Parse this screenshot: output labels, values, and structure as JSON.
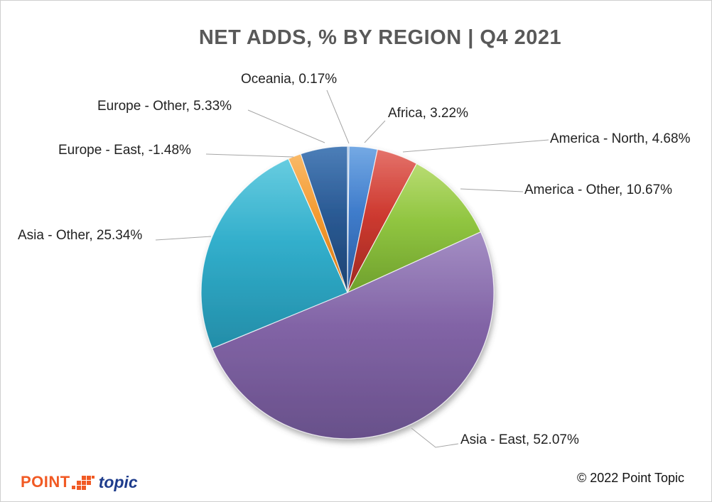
{
  "page": {
    "background": "#FFFFFF",
    "border_color": "#CFCFCF",
    "copyright": "© 2022 Point Topic",
    "logo": {
      "point": "POINT",
      "topic": "topic",
      "orange": "#F15A24",
      "navy": "#1E3C8C"
    }
  },
  "chart_data": {
    "type": "pie",
    "title": "NET ADDS, % BY REGION | Q4 2021",
    "title_color": "#595959",
    "unit": "%",
    "legend_position": "none (data labels with leader lines)",
    "start_angle_deg": 0,
    "direction": "clockwise",
    "leader_line_color": "#A6A6A6",
    "label_color": "#222222",
    "categories": [
      "Oceania",
      "Africa",
      "America - North",
      "America - Other",
      "Asia - East",
      "Asia - Other",
      "Europe - East",
      "Europe - Other"
    ],
    "values": [
      0.17,
      3.22,
      4.68,
      10.67,
      52.07,
      25.34,
      -1.48,
      5.33
    ],
    "slices": [
      {
        "label": "Oceania",
        "value": 0.17,
        "display": "Oceania, 0.17%",
        "color": "#4F81BD",
        "colorLight": "#7FA8D8",
        "colorDark": "#35628F"
      },
      {
        "label": "Africa",
        "value": 3.22,
        "display": "Africa, 3.22%",
        "color": "#3F7CCB",
        "colorLight": "#74A9E4",
        "colorDark": "#2B5CA0"
      },
      {
        "label": "America - North",
        "value": 4.68,
        "display": "America - North, 4.68%",
        "color": "#CE3A30",
        "colorLight": "#E4726A",
        "colorDark": "#9E2921"
      },
      {
        "label": "America - Other",
        "value": 10.67,
        "display": "America - Other, 10.67%",
        "color": "#90C540",
        "colorLight": "#B8DC72",
        "colorDark": "#6FA02D"
      },
      {
        "label": "Asia - East",
        "value": 52.07,
        "display": "Asia - East, 52.07%",
        "color": "#8264A6",
        "colorLight": "#A48EC4",
        "colorDark": "#68508A"
      },
      {
        "label": "Asia - Other",
        "value": 25.34,
        "display": "Asia - Other, 25.34%",
        "color": "#31AECB",
        "colorLight": "#67CCE0",
        "colorDark": "#238DA8"
      },
      {
        "label": "Europe - East",
        "value": -1.48,
        "display": "Europe - East, -1.48%",
        "color": "#F49A31",
        "colorLight": "#F9B968",
        "colorDark": "#D57812"
      },
      {
        "label": "Europe - Other",
        "value": 5.33,
        "display": "Europe - Other, 5.33%",
        "color": "#2B5B95",
        "colorLight": "#4C7EB8",
        "colorDark": "#1C4272"
      }
    ]
  }
}
